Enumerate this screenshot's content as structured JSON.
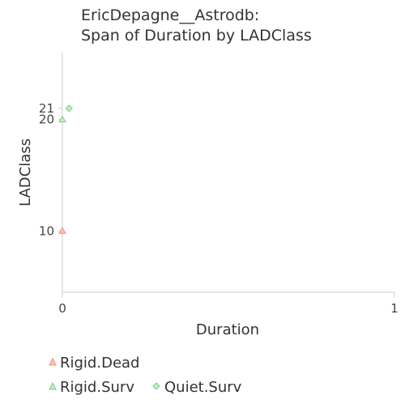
{
  "chart_data": {
    "type": "scatter",
    "title_lines": [
      "EricDepagne__Astrodb:",
      "Span of Duration by LADClass"
    ],
    "xlabel": "Duration",
    "ylabel": "LADClass",
    "xlim": [
      0,
      1
    ],
    "ylim": [
      4.5,
      26
    ],
    "x_ticks": [
      0,
      1
    ],
    "y_ticks": [
      10,
      20,
      21
    ],
    "grid": false,
    "legend_position": "bottom-left",
    "series": [
      {
        "name": "Rigid.Dead",
        "marker": "triangle",
        "color": "#f28e72",
        "points": [
          {
            "x": 0,
            "y": 10
          }
        ]
      },
      {
        "name": "Rigid.Surv",
        "marker": "triangle",
        "color": "#7fcf7a",
        "points": [
          {
            "x": 0,
            "y": 20
          }
        ]
      },
      {
        "name": "Quiet.Surv",
        "marker": "diamond",
        "color": "#7fcf7a",
        "points": [
          {
            "x": 0.02,
            "y": 21
          }
        ]
      }
    ]
  }
}
